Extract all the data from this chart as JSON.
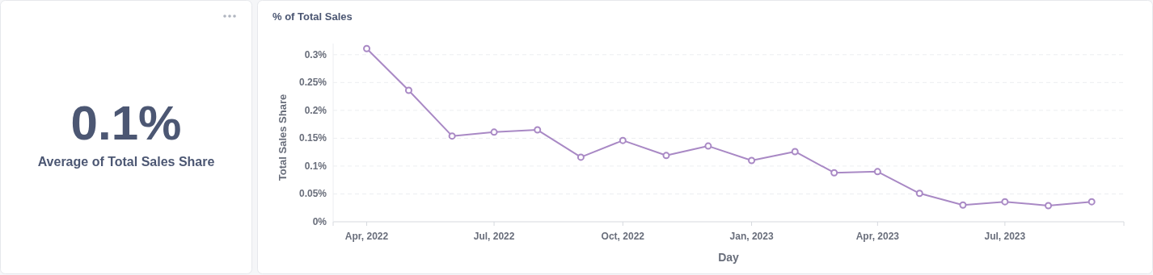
{
  "chart_data": [
    {
      "type": "other",
      "title": "Average of Total Sales Share",
      "value_labels": [
        "0.1%"
      ]
    },
    {
      "type": "line",
      "title": "% of Total Sales",
      "xlabel": "Day",
      "ylabel": "Total Sales Share",
      "x": [
        "2022-04-01",
        "2022-05-01",
        "2022-06-01",
        "2022-07-01",
        "2022-08-01",
        "2022-09-01",
        "2022-10-01",
        "2022-11-01",
        "2022-12-01",
        "2023-01-01",
        "2023-02-01",
        "2023-03-01",
        "2023-04-01",
        "2023-05-01",
        "2023-06-01",
        "2023-07-01",
        "2023-08-01",
        "2023-09-01"
      ],
      "series": [
        {
          "color": "#a989c5",
          "values": [
            0.311,
            0.236,
            0.154,
            0.161,
            0.165,
            0.116,
            0.146,
            0.119,
            0.136,
            0.11,
            0.126,
            0.088,
            0.09,
            0.051,
            0.03,
            0.036,
            0.029,
            0.036
          ]
        }
      ],
      "xlim": [
        "2022-03-08",
        "2023-09-24"
      ],
      "xticks": [
        {
          "value": "2022-04-01",
          "label": "Apr, 2022"
        },
        {
          "value": "2022-07-01",
          "label": "Jul, 2022"
        },
        {
          "value": "2022-10-01",
          "label": "Oct, 2022"
        },
        {
          "value": "2023-01-01",
          "label": "Jan, 2023"
        },
        {
          "value": "2023-04-01",
          "label": "Apr, 2023"
        },
        {
          "value": "2023-07-01",
          "label": "Jul, 2023"
        }
      ],
      "ylim": [
        0,
        0.32
      ],
      "yticks": [
        {
          "value": 0,
          "label": "0%"
        },
        {
          "value": 0.05,
          "label": "0.05%"
        },
        {
          "value": 0.1,
          "label": "0.1%"
        },
        {
          "value": 0.15,
          "label": "0.15%"
        },
        {
          "value": 0.2,
          "label": "0.2%"
        },
        {
          "value": 0.25,
          "label": "0.25%"
        },
        {
          "value": 0.3,
          "label": "0.3%"
        }
      ],
      "grid": "y",
      "marker": "circle",
      "line_style": "solid"
    }
  ]
}
